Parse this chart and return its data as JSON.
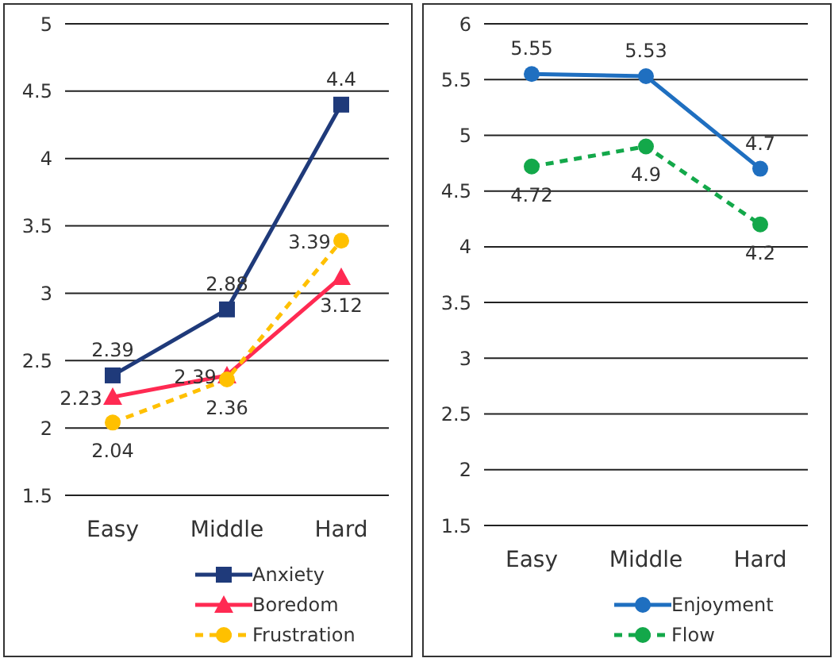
{
  "chart_data": [
    {
      "type": "line",
      "categories": [
        "Easy",
        "Middle",
        "Hard"
      ],
      "ylim": [
        1.5,
        5
      ],
      "yticks": [
        1.5,
        2,
        2.5,
        3,
        3.5,
        4,
        4.5,
        5
      ],
      "grid": "y",
      "legend": "bottom right",
      "data_labels": true,
      "series": [
        {
          "name": "Anxiety",
          "color": "#1f3a7a",
          "values": [
            2.39,
            2.88,
            4.4
          ],
          "marker": "square",
          "line_style": "solid"
        },
        {
          "name": "Boredom",
          "color": "#ff2a52",
          "values": [
            2.23,
            2.39,
            3.12
          ],
          "marker": "triangle",
          "line_style": "solid"
        },
        {
          "name": "Frustration",
          "color": "#ffc000",
          "values": [
            2.04,
            2.36,
            3.39
          ],
          "marker": "circle",
          "line_style": "dashed"
        }
      ]
    },
    {
      "type": "line",
      "categories": [
        "Easy",
        "Middle",
        "Hard"
      ],
      "ylim": [
        1.5,
        6
      ],
      "yticks": [
        1.5,
        2,
        2.5,
        3,
        3.5,
        4,
        4.5,
        5,
        5.5,
        6
      ],
      "grid": "y",
      "legend": "bottom right",
      "data_labels": true,
      "series": [
        {
          "name": "Enjoyment",
          "color": "#1f6fc0",
          "values": [
            5.55,
            5.53,
            4.7
          ],
          "marker": "circle",
          "line_style": "solid"
        },
        {
          "name": "Flow",
          "color": "#13a84a",
          "values": [
            4.72,
            4.9,
            4.2
          ],
          "marker": "circle",
          "line_style": "dashed"
        }
      ]
    }
  ]
}
